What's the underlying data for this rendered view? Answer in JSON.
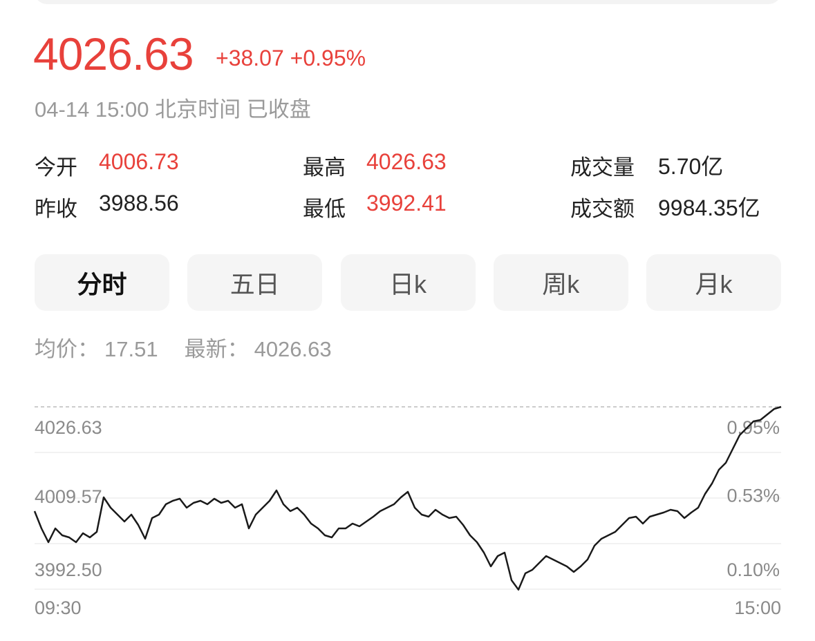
{
  "header": {
    "price": "4026.63",
    "change": "+38.07",
    "change_pct": "+0.95%",
    "status": "04-14 15:00 北京时间 已收盘"
  },
  "stats": [
    {
      "label": "今开",
      "value": "4006.73",
      "color": "#e8413b"
    },
    {
      "label": "最高",
      "value": "4026.63",
      "color": "#e8413b"
    },
    {
      "label": "成交量",
      "value": "5.70亿",
      "color": "#222222"
    },
    {
      "label": "昨收",
      "value": "3988.56",
      "color": "#222222"
    },
    {
      "label": "最低",
      "value": "3992.41",
      "color": "#e8413b"
    },
    {
      "label": "成交额",
      "value": "9984.35亿",
      "color": "#222222"
    }
  ],
  "tabs": [
    "分时",
    "五日",
    "日k",
    "周k",
    "月k"
  ],
  "info": [
    {
      "label": "均价：",
      "value": "17.51"
    },
    {
      "label": "最新：",
      "value": "4026.63"
    }
  ],
  "chart_data": {
    "type": "line",
    "color": "#1a1a1a",
    "categories": [
      "09:30",
      null,
      null,
      null,
      null,
      null,
      null,
      null,
      null,
      null,
      null,
      null,
      null,
      null,
      null,
      null,
      null,
      null,
      null,
      null,
      null,
      null,
      null,
      null,
      null,
      null,
      null,
      null,
      null,
      null,
      null,
      null,
      null,
      null,
      null,
      null,
      null,
      null,
      null,
      null,
      null,
      null,
      null,
      null,
      null,
      null,
      null,
      null,
      null,
      null,
      null,
      null,
      null,
      null,
      null,
      null,
      null,
      null,
      null,
      null,
      null,
      null,
      null,
      null,
      null,
      null,
      null,
      null,
      null,
      null,
      null,
      null,
      null,
      null,
      null,
      null,
      null,
      null,
      null,
      null,
      null,
      null,
      null,
      null,
      null,
      null,
      null,
      null,
      null,
      null,
      null,
      null,
      null,
      null,
      null,
      null,
      null,
      null,
      null,
      null,
      null,
      null,
      null,
      null,
      null,
      null,
      null,
      null,
      "15:00"
    ],
    "values": [
      4007.11,
      4003.88,
      4001.29,
      4003.88,
      4002.58,
      4002.2,
      4001.29,
      4002.97,
      4002.2,
      4003.23,
      4009.69,
      4007.76,
      4006.46,
      4005.17,
      4006.46,
      4004.52,
      4001.94,
      4005.82,
      4006.46,
      4008.4,
      4009.05,
      4009.44,
      4007.76,
      4008.66,
      4009.05,
      4008.4,
      4009.44,
      4008.66,
      4009.05,
      4007.76,
      4008.4,
      4003.88,
      4006.46,
      4007.76,
      4009.05,
      4010.99,
      4008.4,
      4007.11,
      4007.76,
      4006.46,
      4004.78,
      4003.88,
      4002.58,
      4002.2,
      4003.88,
      4003.88,
      4004.78,
      4004.26,
      4005.17,
      4006.07,
      4007.11,
      4007.76,
      4008.4,
      4009.69,
      4010.73,
      4007.76,
      4006.46,
      4006.07,
      4007.37,
      4006.46,
      4005.82,
      4006.07,
      4004.52,
      4002.58,
      4001.29,
      3999.35,
      3996.77,
      3998.71,
      3999.35,
      3994.18,
      3992.41,
      3995.47,
      3996.12,
      3997.41,
      3998.71,
      3998.06,
      3997.41,
      3996.77,
      3995.73,
      3996.77,
      3998.06,
      4000.64,
      4001.94,
      4002.58,
      4003.23,
      4004.52,
      4005.82,
      4006.07,
      4004.78,
      4006.07,
      4006.46,
      4006.85,
      4007.37,
      4007.11,
      4005.82,
      4006.85,
      4007.76,
      4010.34,
      4012.28,
      4014.87,
      4016.16,
      4018.74,
      4021.33,
      4022.62,
      4023.92,
      4024.17,
      4025.21,
      4026.24,
      4026.63
    ],
    "ylim": [
      3992.5,
      4026.63
    ],
    "yticks": [
      4026.63,
      4009.57,
      {
        "value": 3992.5,
        "label": "3992.50"
      }
    ],
    "y2lim": [
      0.1,
      0.95
    ],
    "y2ticks": [
      {
        "value": 0.95,
        "label": "0.95%"
      },
      {
        "value": 0.53,
        "label": "0.53%"
      },
      {
        "value": 0.1,
        "label": "0.10%"
      }
    ],
    "grid": true
  }
}
